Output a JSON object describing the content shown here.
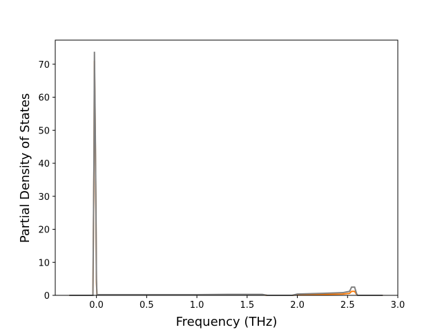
{
  "chart_data": {
    "type": "line",
    "x_label": "Frequency (THz)",
    "y_label": "Partial Density of States",
    "x": [
      -0.27,
      -0.05,
      -0.035,
      -0.025,
      -0.02,
      -0.015,
      -0.01,
      -0.005,
      0.0,
      0.005,
      0.01,
      0.02,
      0.5,
      1.0,
      1.3,
      1.65,
      1.7,
      1.95,
      2.0,
      2.25,
      2.45,
      2.52,
      2.54,
      2.57,
      2.59,
      2.6,
      2.85
    ],
    "series": [
      {
        "color": "#ff7f0e",
        "values": [
          0,
          0,
          0,
          38,
          71,
          58,
          43,
          26,
          4,
          0.1,
          0.1,
          0.1,
          0.1,
          0.1,
          0.2,
          0.2,
          0,
          0,
          0.2,
          0.3,
          0.4,
          0.6,
          1.2,
          1.2,
          0.3,
          0,
          0
        ]
      },
      {
        "color": "#7f7f7f",
        "values": [
          0,
          0,
          0,
          40,
          73.8,
          60,
          45,
          27,
          5,
          0.2,
          0.2,
          0.2,
          0.2,
          0.2,
          0.3,
          0.3,
          0,
          0,
          0.4,
          0.6,
          0.8,
          1.2,
          2.5,
          2.5,
          0.5,
          0,
          0
        ]
      }
    ],
    "xlim": [
      -0.41,
      3.0
    ],
    "ylim": [
      0,
      77.3
    ],
    "xticks": [
      {
        "value": 0,
        "label": "0.0"
      },
      0.5,
      {
        "value": 1,
        "label": "1.0"
      },
      1.5,
      {
        "value": 2,
        "label": "2.0"
      },
      2.5,
      {
        "value": 3,
        "label": "3.0"
      }
    ],
    "yticks": [
      0,
      10,
      20,
      30,
      40,
      50,
      60,
      70
    ]
  }
}
